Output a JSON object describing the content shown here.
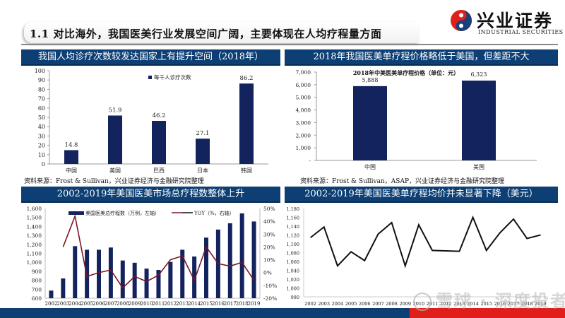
{
  "header": {
    "title": "1.1 对比海外，我国医美行业发展空间广阔，主要体现在人均疗程量方面",
    "logo_cn": "兴业证券",
    "logo_en": "INDUSTRIAL SECURITIES"
  },
  "panels": {
    "top_left": {
      "header": "我国人均诊疗次数较发达国家上有提升空间（2018年）",
      "source": "资料来源：Frost & Sullivan，兴业证券经济与金融研究院整理"
    },
    "top_right": {
      "header": "2018年我国医美单疗程价格略低于美国，但差距不大",
      "source": "资料来源：Frost & Sullivan，ASAP，兴业证券经济与金融研究院整理"
    },
    "bottom_left": {
      "header": "2002-2019年美国医美市场总疗程数整体上升"
    },
    "bottom_right": {
      "header": "2002-2019年美国医美单疗程均价并未显著下降（美元）"
    }
  },
  "watermark": "雪球 · 深度投者",
  "colors": {
    "navy": "#0d3f74",
    "bar": "#13235e",
    "yoy_line": "#7b1521",
    "price_line": "#111111",
    "accent_red": "#e11f1a"
  },
  "chart_data": [
    {
      "type": "bar",
      "title": "",
      "legend": [
        "每千人诊疗次数"
      ],
      "categories": [
        "中国",
        "美国",
        "巴西",
        "日本",
        "韩国"
      ],
      "values": [
        14.8,
        51.9,
        46.2,
        27.1,
        86.2
      ],
      "value_labels": [
        "14.8",
        "51.9",
        "46.2",
        "27.1",
        "86.2"
      ],
      "xlabel": "",
      "ylabel": "",
      "ylim": [
        0,
        100
      ],
      "yticks": [
        "0",
        "10",
        "20",
        "30",
        "40",
        "50",
        "60",
        "70",
        "80",
        "90",
        "100"
      ],
      "grid": false
    },
    {
      "type": "bar",
      "title": "2018年中美医美单疗程价格（单位：元）",
      "categories": [
        "中国",
        "美国"
      ],
      "values": [
        5888,
        6323
      ],
      "value_labels": [
        "5,888",
        "6,323"
      ],
      "xlabel": "",
      "ylabel": "",
      "ylim": [
        0,
        7000
      ],
      "yticks": [
        "-",
        "1,000",
        "2,000",
        "3,000",
        "4,000",
        "5,000",
        "6,000",
        "7,000"
      ],
      "grid": false
    },
    {
      "type": "bar",
      "title": "",
      "legend": [
        "美国医美总疗程数（万例，左轴）",
        "YOY（%，右轴）"
      ],
      "categories": [
        "2002",
        "2003",
        "2004",
        "2005",
        "2006",
        "2007",
        "2008",
        "2009",
        "2010",
        "2011",
        "2012",
        "2013",
        "2014",
        "2015",
        "2016",
        "2017",
        "2018",
        "2019"
      ],
      "series": [
        {
          "name": "美国医美总疗程数（万例，左轴）",
          "type": "bar",
          "axis": "left",
          "values": [
            685,
            820,
            1180,
            1140,
            1140,
            1165,
            1020,
            995,
            930,
            915,
            1005,
            1140,
            1065,
            1275,
            1365,
            1435,
            1545,
            1455
          ]
        },
        {
          "name": "YOY（%，右轴）",
          "type": "line",
          "axis": "right",
          "values": [
            null,
            20,
            44,
            -3,
            0,
            2,
            -12,
            -3,
            -7,
            -2,
            10,
            13,
            -6,
            20,
            7,
            5,
            8,
            -6
          ]
        }
      ],
      "ylim": [
        600,
        1600
      ],
      "yticks": [
        "600",
        "700",
        "800",
        "900",
        "1,000",
        "1,100",
        "1,200",
        "1,300",
        "1,400",
        "1,500",
        "1,600"
      ],
      "y2lim": [
        -20,
        50
      ],
      "y2ticks": [
        "-20%",
        "-10%",
        "0%",
        "10%",
        "20%",
        "30%",
        "40%",
        "50%"
      ],
      "legend_position": "top",
      "grid": false
    },
    {
      "type": "line",
      "title": "",
      "categories": [
        "2002",
        "2003",
        "2004",
        "2005",
        "2006",
        "2007",
        "2008",
        "2009",
        "2010",
        "2011",
        "2012",
        "2013",
        "2014",
        "2015",
        "2016",
        "2017",
        "2018",
        "2019"
      ],
      "values": [
        1114,
        1138,
        1050,
        1082,
        1062,
        1122,
        1148,
        1050,
        1143,
        1085,
        1084,
        1083,
        1160,
        1085,
        1125,
        1156,
        1112,
        1120
      ],
      "ylim": [
        980,
        1180
      ],
      "yticks": [
        "980",
        "1,000",
        "1,020",
        "1,040",
        "1,060",
        "1,080",
        "1,100",
        "1,120",
        "1,140",
        "1,160",
        "1,180"
      ],
      "grid": false
    }
  ]
}
